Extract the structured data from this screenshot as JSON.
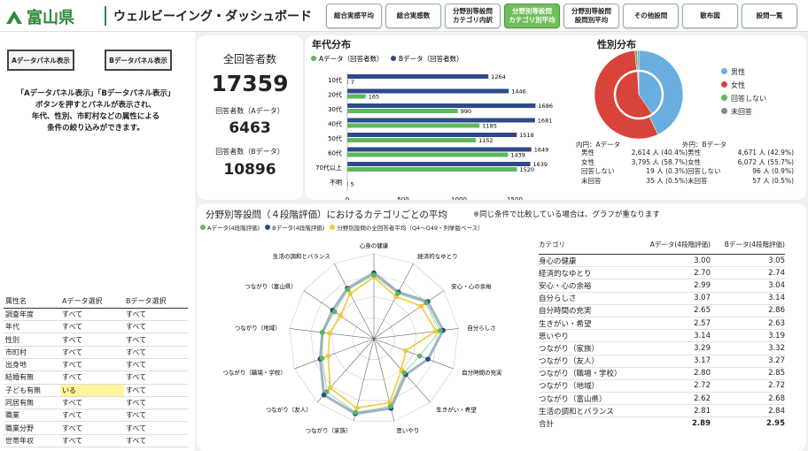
{
  "header": {
    "logo_text": "富山県",
    "title": "ウェルビーイング・ダッシュボード",
    "tabs": [
      "総合実感平均",
      "総合実感数",
      "分野別等設問\nカテゴリ内訳",
      "分野別等設問\nカテゴリ別平均",
      "分野別等設問\n設問別平均",
      "その他設問",
      "散布図",
      "設問一覧"
    ],
    "active_tab": 3
  },
  "filters": {
    "btn_a": "Aデータパネル表示",
    "btn_b": "Bデータパネル表示",
    "hint": "「Aデータパネル表示」「Bデータパネル表示」\nボタンを押すとパネルが表示され、\n年代、性別、市町村などの属性による\n条件の絞り込みができます。",
    "columns": [
      "属性名",
      "Aデータ選択",
      "Bデータ選択"
    ],
    "rows": [
      [
        "調査年度",
        "すべて",
        "すべて"
      ],
      [
        "年代",
        "すべて",
        "すべて"
      ],
      [
        "性別",
        "すべて",
        "すべて"
      ],
      [
        "市町村",
        "すべて",
        "すべて"
      ],
      [
        "出身地",
        "すべて",
        "すべて"
      ],
      [
        "結婚有無",
        "すべて",
        "すべて"
      ],
      [
        "子ども有無",
        "いる",
        "すべて"
      ],
      [
        "同居有無",
        "すべて",
        "すべて"
      ],
      [
        "職業",
        "すべて",
        "すべて"
      ],
      [
        "職業分野",
        "すべて",
        "すべて"
      ],
      [
        "世帯年収",
        "すべて",
        "すべて"
      ]
    ]
  },
  "totals": {
    "label": "全回答者数",
    "value": "17359",
    "a_label": "回答者数（Aデータ）",
    "a_value": "6463",
    "b_label": "回答者数（Bデータ）",
    "b_value": "10896"
  },
  "colors": {
    "green": "#5cb85c",
    "navy": "#2f4a8a",
    "yellow": "#f0c93a",
    "red": "#d9443a",
    "blue": "#6aaee0",
    "gray": "#888888"
  },
  "age_chart": {
    "title": "年代分布",
    "legend_a": "Aデータ（回答者数）",
    "legend_b": "Bデータ（回答者数）",
    "categories": [
      "10代",
      "20代",
      "30代",
      "40代",
      "50代",
      "60代",
      "70代以上",
      "不明"
    ],
    "a": [
      7,
      165,
      990,
      1185,
      1152,
      1439,
      1520,
      5
    ],
    "b": [
      1264,
      1446,
      1686,
      1681,
      1518,
      1649,
      1639,
      null
    ],
    "a_labels": [
      "7",
      "165",
      "990",
      "1185",
      "1152",
      "1439",
      "1520",
      "5"
    ],
    "b_labels": [
      "1264",
      "1446",
      "1686",
      "1681",
      "1518",
      "1649",
      "1639",
      ""
    ],
    "ticks": [
      "0",
      "500",
      "1000",
      "1500"
    ]
  },
  "gender": {
    "title": "性別分布",
    "legend": [
      "男性",
      "女性",
      "回答しない",
      "未回答"
    ],
    "a_head": "内円：Aデータ",
    "b_head": "外円：Bデータ",
    "a_rows": [
      [
        "男性",
        "2,614 人 (40.4%)"
      ],
      [
        "女性",
        "3,795 人 (58.7%)"
      ],
      [
        "回答しない",
        "19 人 (0.3%)"
      ],
      [
        "未回答",
        "35 人 (0.5%)"
      ]
    ],
    "b_rows": [
      [
        "男性",
        "4,671 人 (42.9%)"
      ],
      [
        "女性",
        "6,072 人 (55.7%)"
      ],
      [
        "回答しない",
        "96 人 (0.9%)"
      ],
      [
        "未回答",
        "57 人 (0.5%)"
      ]
    ],
    "a_pct": [
      40.4,
      58.7,
      0.3,
      0.5
    ],
    "b_pct": [
      42.9,
      55.7,
      0.9,
      0.5
    ]
  },
  "radar": {
    "title": "分野別等設問（４段階評価）におけるカテゴリごとの平均",
    "note": "※同じ条件で比較している場合は、グラフが重なります",
    "legend": [
      "Aデータ(4段階評価)",
      "Bデータ(4段階評価)",
      "分野別設問の全回答者平均（Q4～Q49・列挙版ベース）"
    ],
    "axes": [
      "心身の健康",
      "経済的なゆとり",
      "安心・心の余裕",
      "自分らしさ",
      "自分時間の充実",
      "生きがい・希望",
      "思いやり",
      "つながり（家族）",
      "つながり（友人）",
      "つながり（職場・学校）",
      "つながり（地域）",
      "つながり（富山県）",
      "生活の調和とバランス"
    ],
    "a": [
      3.0,
      2.7,
      2.99,
      3.07,
      2.65,
      2.57,
      3.14,
      3.29,
      3.17,
      2.8,
      2.72,
      2.62,
      2.81
    ],
    "b": [
      3.05,
      2.74,
      3.04,
      3.14,
      2.86,
      2.63,
      3.19,
      3.32,
      3.27,
      2.85,
      2.72,
      2.68,
      2.84
    ],
    "avg": [
      2.95,
      2.62,
      2.85,
      2.97,
      2.3,
      2.48,
      3.05,
      3.18,
      3.05,
      2.65,
      2.55,
      2.45,
      2.7
    ]
  },
  "table": {
    "columns": [
      "カテゴリ",
      "Aデータ(4段階評価)",
      "Bデータ(4段階評価)"
    ],
    "rows": [
      [
        "身心の健康",
        "3.00",
        "3.05"
      ],
      [
        "経済的なゆとり",
        "2.70",
        "2.74"
      ],
      [
        "安心・心の余裕",
        "2.99",
        "3.04"
      ],
      [
        "自分らしさ",
        "3.07",
        "3.14"
      ],
      [
        "自分時間の充実",
        "2.65",
        "2.86"
      ],
      [
        "生きがい・希望",
        "2.57",
        "2.63"
      ],
      [
        "思いやり",
        "3.14",
        "3.19"
      ],
      [
        "つながり（家族）",
        "3.29",
        "3.32"
      ],
      [
        "つながり（友人）",
        "3.17",
        "3.27"
      ],
      [
        "つながり（職場・学校）",
        "2.80",
        "2.85"
      ],
      [
        "つながり（地域）",
        "2.72",
        "2.72"
      ],
      [
        "つながり（富山県）",
        "2.62",
        "2.68"
      ],
      [
        "生活の調和とバランス",
        "2.81",
        "2.84"
      ]
    ],
    "total": [
      "合計",
      "2.89",
      "2.95"
    ]
  }
}
